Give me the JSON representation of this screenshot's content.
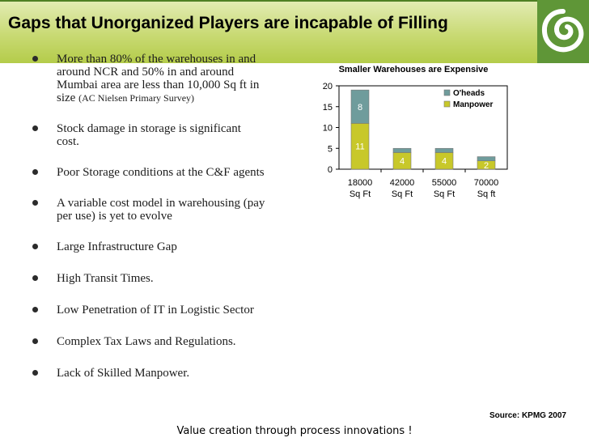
{
  "title": "Gaps that Unorganized Players are incapable of Filling",
  "bullets": [
    {
      "lines": [
        "More than 80% of the warehouses in and",
        "around NCR and 50% in and around",
        "Mumbai area are less than 10,000 Sq ft in"
      ],
      "last": "size ",
      "note": "(AC Nielsen Primary Survey)"
    },
    {
      "lines": [
        "Stock damage in storage is significant",
        "cost."
      ]
    },
    {
      "lines": [
        "Poor Storage conditions at the C&F agents"
      ]
    },
    {
      "lines": [
        "A variable cost model in warehousing (pay",
        "per use) is yet to evolve"
      ]
    },
    {
      "lines": [
        "Large Infrastructure Gap"
      ]
    },
    {
      "lines": [
        "High Transit Times."
      ]
    },
    {
      "lines": [
        "Low Penetration of IT in Logistic Sector"
      ]
    },
    {
      "lines": [
        "Complex Tax Laws and Regulations."
      ]
    },
    {
      "lines": [
        "Lack of Skilled Manpower."
      ]
    }
  ],
  "chart_data": {
    "type": "bar",
    "stacked": true,
    "title": "Smaller Warehouses are Expensive",
    "categories": [
      [
        "18000",
        "Sq Ft"
      ],
      [
        "42000",
        "Sq Ft"
      ],
      [
        "55000",
        "Sq Ft"
      ],
      [
        "70000",
        "Sq ft"
      ]
    ],
    "series": [
      {
        "name": "Manpower",
        "values": [
          11,
          4,
          4,
          2
        ],
        "color": "#c8c82a"
      },
      {
        "name": "O'heads",
        "values": [
          8,
          1,
          1,
          1
        ],
        "color": "#6f9c9c"
      }
    ],
    "ylim": [
      0,
      20
    ],
    "yticks": [
      0,
      5,
      10,
      15,
      20
    ],
    "legend_position": "top-right",
    "data_labels": [
      [
        "11",
        "8"
      ],
      [
        "4",
        ""
      ],
      [
        "4",
        ""
      ],
      [
        "2",
        ""
      ]
    ]
  },
  "source": "Source: KPMG 2007",
  "footer": "Value creation through process innovations !",
  "colors": {
    "header_green": "#c9da74",
    "logo_green": "#5f9637"
  }
}
